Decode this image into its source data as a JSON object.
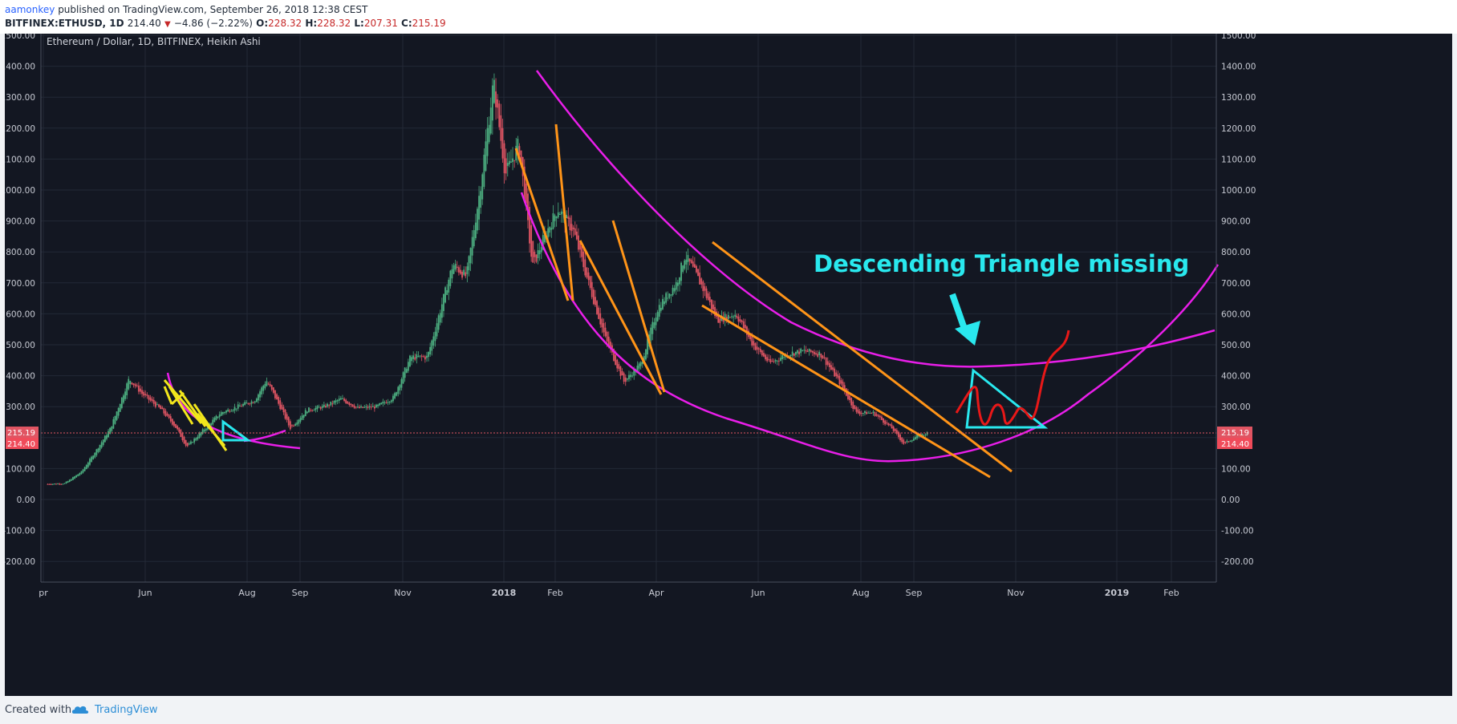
{
  "header": {
    "user": "aamonkey",
    "published": "published on TradingView.com, September 26, 2018 12:38 CEST",
    "symbol": "BITFINEX:ETHUSD, 1D",
    "last": "214.40",
    "change": "−4.86 (−2.22%)",
    "o_label": "O:",
    "o_value": "228.32",
    "h_label": "H:",
    "h_value": "228.32",
    "l_label": "L:",
    "l_value": "207.31",
    "c_label": "C:",
    "c_value": "215.19"
  },
  "footer": {
    "created_with": "Created with",
    "brand": "TradingView"
  },
  "colors": {
    "up": "#4caf80",
    "down": "#e05563",
    "magenta": "#e91ee9",
    "orange": "#ff9418",
    "cyan": "#29e8ee",
    "yellow": "#f2e61c",
    "red": "#e81818",
    "background": "#131722"
  },
  "chart_data": {
    "type": "candlestick",
    "title": "Ethereum / Dollar, 1D, BITFINEX, Heikin Ashi",
    "annotation": "Descending Triangle missing",
    "ylim": [
      -250,
      1520
    ],
    "y_ticks": [
      "1500.00",
      "1400.00",
      "1300.00",
      "1200.00",
      "1100.00",
      "1000.00",
      "900.00",
      "800.00",
      "700.00",
      "600.00",
      "500.00",
      "400.00",
      "300.00",
      "200.00",
      "100.00",
      "0.00",
      "-100.00",
      "-200.00"
    ],
    "x_ticks": [
      "pr",
      "Jun",
      "Aug",
      "Sep",
      "Nov",
      "2018",
      "Feb",
      "Apr",
      "Jun",
      "Aug",
      "Sep",
      "Nov",
      "2019",
      "Feb"
    ],
    "price_labels": [
      {
        "value": 215.19,
        "text": "215.19"
      },
      {
        "value": 214.4,
        "text": "214.40"
      }
    ],
    "close_series": [
      [
        "2017-04-25",
        50
      ],
      [
        "2017-05-05",
        52
      ],
      [
        "2017-05-15",
        90
      ],
      [
        "2017-05-25",
        170
      ],
      [
        "2017-06-01",
        230
      ],
      [
        "2017-06-12",
        390
      ],
      [
        "2017-06-20",
        340
      ],
      [
        "2017-07-01",
        290
      ],
      [
        "2017-07-10",
        230
      ],
      [
        "2017-07-16",
        170
      ],
      [
        "2017-07-25",
        220
      ],
      [
        "2017-08-05",
        280
      ],
      [
        "2017-08-15",
        300
      ],
      [
        "2017-08-25",
        320
      ],
      [
        "2017-09-01",
        385
      ],
      [
        "2017-09-10",
        290
      ],
      [
        "2017-09-15",
        230
      ],
      [
        "2017-09-25",
        290
      ],
      [
        "2017-10-05",
        300
      ],
      [
        "2017-10-15",
        325
      ],
      [
        "2017-10-25",
        295
      ],
      [
        "2017-11-05",
        300
      ],
      [
        "2017-11-15",
        330
      ],
      [
        "2017-11-25",
        460
      ],
      [
        "2017-12-05",
        460
      ],
      [
        "2017-12-12",
        600
      ],
      [
        "2017-12-20",
        760
      ],
      [
        "2017-12-28",
        720
      ],
      [
        "2018-01-05",
        1000
      ],
      [
        "2018-01-13",
        1350
      ],
      [
        "2018-01-20",
        1050
      ],
      [
        "2018-01-28",
        1150
      ],
      [
        "2018-02-05",
        750
      ],
      [
        "2018-02-12",
        850
      ],
      [
        "2018-02-20",
        940
      ],
      [
        "2018-03-01",
        870
      ],
      [
        "2018-03-10",
        700
      ],
      [
        "2018-03-20",
        520
      ],
      [
        "2018-03-31",
        380
      ],
      [
        "2018-04-10",
        440
      ],
      [
        "2018-04-20",
        620
      ],
      [
        "2018-05-01",
        700
      ],
      [
        "2018-05-06",
        790
      ],
      [
        "2018-05-15",
        700
      ],
      [
        "2018-05-25",
        580
      ],
      [
        "2018-06-05",
        600
      ],
      [
        "2018-06-15",
        500
      ],
      [
        "2018-06-25",
        440
      ],
      [
        "2018-07-05",
        470
      ],
      [
        "2018-07-15",
        480
      ],
      [
        "2018-07-25",
        470
      ],
      [
        "2018-08-05",
        380
      ],
      [
        "2018-08-15",
        280
      ],
      [
        "2018-08-25",
        280
      ],
      [
        "2018-09-05",
        230
      ],
      [
        "2018-09-12",
        180
      ],
      [
        "2018-09-20",
        205
      ],
      [
        "2018-09-26",
        214.4
      ]
    ]
  }
}
